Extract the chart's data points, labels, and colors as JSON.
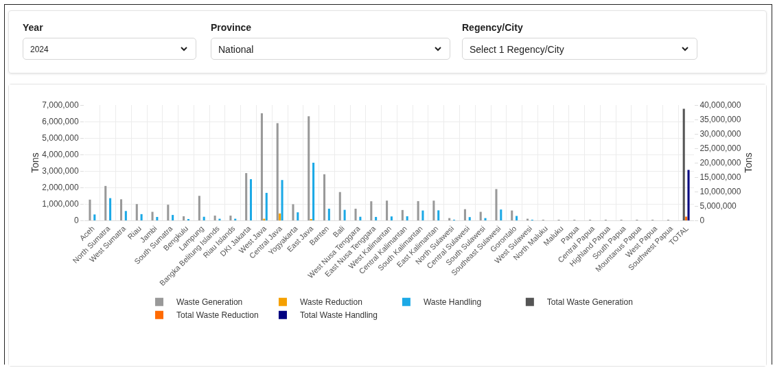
{
  "chart_data": {
    "type": "bar",
    "ylabel": "Tons",
    "y2label": "Tons",
    "annotations": [
      "Year",
      "2024",
      "Province",
      "National",
      "Regency/City",
      "Select 1 Regency/City"
    ],
    "categories": [
      "Aceh",
      "North Sumatra",
      "West Sumatra",
      "Riau",
      "Jambi",
      "South Sumatra",
      "Bengkulu",
      "Lampung",
      "Bangka Belitung Islands",
      "Riau Islands",
      "DKI Jakarta",
      "West Java",
      "Central Java",
      "Yogyakarta",
      "East Java",
      "Banten",
      "Bali",
      "West Nusa Tenggara",
      "East Nusa Tenggara",
      "West Kalimantan",
      "Central Kalimantan",
      "South Kalimantan",
      "East Kalimantan",
      "North Sulawesi",
      "Central Sulawesi",
      "South Sulawesi",
      "Southeast Sulawesi",
      "Gorontalo",
      "West Sulawesi",
      "North Maluku",
      "Maluku",
      "Papua",
      "Central Papua",
      "Highland Papua",
      "South Papua",
      "Mountanus Papua",
      "West Papua",
      "Southwest Papua",
      "TOTAL"
    ],
    "series": [
      {
        "name": "Waste Generation",
        "color": "#999999",
        "values": [
          1260000,
          2090000,
          1280000,
          990000,
          520000,
          950000,
          250000,
          1490000,
          290000,
          290000,
          2870000,
          6500000,
          5900000,
          980000,
          6320000,
          2800000,
          1720000,
          710000,
          1160000,
          1200000,
          630000,
          1170000,
          1200000,
          140000,
          680000,
          520000,
          1900000,
          600000,
          100000,
          30000,
          30000,
          20000,
          20000,
          20000,
          20000,
          20000,
          20000,
          20000,
          null
        ]
      },
      {
        "name": "Waste Reduction",
        "color": "#f5a000",
        "values": [
          0,
          0,
          0,
          0,
          0,
          0,
          0,
          0,
          0,
          0,
          0,
          100000,
          420000,
          0,
          80000,
          0,
          0,
          0,
          0,
          0,
          0,
          0,
          0,
          0,
          0,
          0,
          0,
          0,
          0,
          0,
          0,
          0,
          0,
          0,
          0,
          0,
          0,
          0,
          null
        ]
      },
      {
        "name": "Waste Handling",
        "color": "#1ca9e6",
        "values": [
          360000,
          1350000,
          570000,
          380000,
          210000,
          330000,
          70000,
          220000,
          100000,
          100000,
          2500000,
          1670000,
          2450000,
          490000,
          3500000,
          710000,
          640000,
          220000,
          210000,
          240000,
          250000,
          600000,
          610000,
          40000,
          200000,
          140000,
          660000,
          270000,
          30000,
          0,
          0,
          0,
          0,
          0,
          0,
          0,
          0,
          0,
          null
        ]
      },
      {
        "name": "Total Waste Generation",
        "color": "#555555",
        "axis": "y2",
        "values": [
          null,
          null,
          null,
          null,
          null,
          null,
          null,
          null,
          null,
          null,
          null,
          null,
          null,
          null,
          null,
          null,
          null,
          null,
          null,
          null,
          null,
          null,
          null,
          null,
          null,
          null,
          null,
          null,
          null,
          null,
          null,
          null,
          null,
          null,
          null,
          null,
          null,
          null,
          38700000
        ]
      },
      {
        "name": "Total Waste Reduction",
        "color": "#ff6a00",
        "axis": "y2",
        "values": [
          null,
          null,
          null,
          null,
          null,
          null,
          null,
          null,
          null,
          null,
          null,
          null,
          null,
          null,
          null,
          null,
          null,
          null,
          null,
          null,
          null,
          null,
          null,
          null,
          null,
          null,
          null,
          null,
          null,
          null,
          null,
          null,
          null,
          null,
          null,
          null,
          null,
          null,
          1300000
        ]
      },
      {
        "name": "Total Waste Handling",
        "color": "#000080",
        "axis": "y2",
        "values": [
          null,
          null,
          null,
          null,
          null,
          null,
          null,
          null,
          null,
          null,
          null,
          null,
          null,
          null,
          null,
          null,
          null,
          null,
          null,
          null,
          null,
          null,
          null,
          null,
          null,
          null,
          null,
          null,
          null,
          null,
          null,
          null,
          null,
          null,
          null,
          null,
          null,
          null,
          17500000
        ]
      }
    ],
    "ylim": [
      0,
      7000000
    ],
    "yticks": [
      0,
      {
        "value": 1000000,
        "label": "1,000,000"
      },
      {
        "value": 2000000,
        "label": "2,000,000"
      },
      {
        "value": 3000000,
        "label": "3,000,000"
      },
      {
        "value": 4000000,
        "label": "4,000,000"
      },
      {
        "value": 5000000,
        "label": "5,000,000"
      },
      {
        "value": 6000000,
        "label": "6,000,000"
      },
      {
        "value": 7000000,
        "label": "7,000,000"
      }
    ],
    "y2lim": [
      0,
      40000000
    ],
    "y2ticks": [
      0,
      {
        "value": 5000000,
        "label": "5,000,000"
      },
      {
        "value": 10000000,
        "label": "10,000,000"
      },
      {
        "value": 15000000,
        "label": "15,000,000"
      },
      {
        "value": 20000000,
        "label": "20,000,000"
      },
      {
        "value": 25000000,
        "label": "25,000,000"
      },
      {
        "value": 30000000,
        "label": "30,000,000"
      },
      {
        "value": 35000000,
        "label": "35,000,000"
      },
      {
        "value": 40000000,
        "label": "40,000,000"
      }
    ],
    "grid": true,
    "legend": "bottom"
  }
}
